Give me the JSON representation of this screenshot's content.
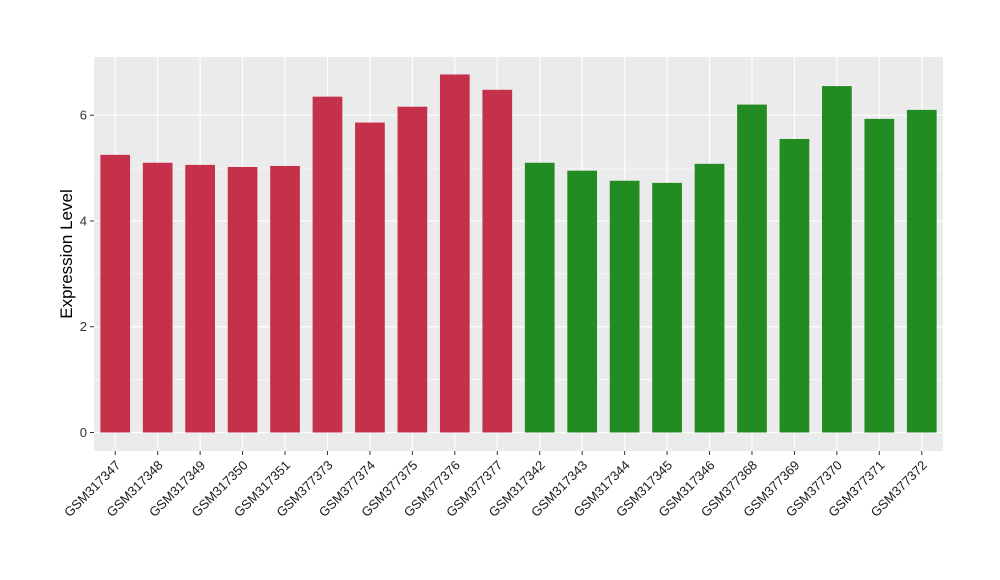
{
  "chart_data": {
    "type": "bar",
    "ylabel": "Expression Level",
    "xlabel": "",
    "ylim": [
      -0.35,
      7.1
    ],
    "yticks": [
      0,
      2,
      4,
      6
    ],
    "grid": true,
    "legend": "none",
    "categories": [
      "GSM317347",
      "GSM317348",
      "GSM317349",
      "GSM317350",
      "GSM317351",
      "GSM377373",
      "GSM377374",
      "GSM377375",
      "GSM377376",
      "GSM377377",
      "GSM317342",
      "GSM317343",
      "GSM317344",
      "GSM317345",
      "GSM317346",
      "GSM377368",
      "GSM377369",
      "GSM377370",
      "GSM377371",
      "GSM377372"
    ],
    "values": [
      5.25,
      5.1,
      5.06,
      5.02,
      5.04,
      6.35,
      5.86,
      6.16,
      6.77,
      6.48,
      5.1,
      4.95,
      4.76,
      4.72,
      5.08,
      6.2,
      5.55,
      6.55,
      5.93,
      6.1
    ],
    "colors": [
      "#c5314a",
      "#c5314a",
      "#c5314a",
      "#c5314a",
      "#c5314a",
      "#c5314a",
      "#c5314a",
      "#c5314a",
      "#c5314a",
      "#c5314a",
      "#228b22",
      "#228b22",
      "#228b22",
      "#228b22",
      "#228b22",
      "#228b22",
      "#228b22",
      "#228b22",
      "#228b22",
      "#228b22"
    ],
    "panel_background": "#ebebeb",
    "gridline_color": "#ffffff"
  }
}
